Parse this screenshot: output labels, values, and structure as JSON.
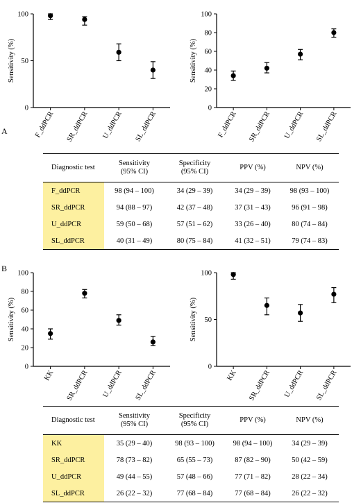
{
  "panels": [
    {
      "letter": "A"
    },
    {
      "letter": "B"
    }
  ],
  "chart_data": [
    {
      "type": "scatter",
      "panel": "A",
      "ylabel": "Sensitivity (%)",
      "ylim": [
        0,
        100
      ],
      "yticks": [
        0,
        50,
        100
      ],
      "categories": [
        "F_ddPCR",
        "SR_ddPCR",
        "U_ddPCR",
        "SL_ddPCR"
      ],
      "values": [
        98,
        94,
        59,
        40
      ],
      "lower": [
        94,
        88,
        50,
        31
      ],
      "upper": [
        100,
        97,
        68,
        49
      ],
      "grid": false
    },
    {
      "type": "scatter",
      "panel": "A",
      "ylabel": "Sensitivity (%)",
      "ylim": [
        0,
        100
      ],
      "yticks": [
        0,
        20,
        40,
        60,
        80,
        100
      ],
      "categories": [
        "F_ddPCR",
        "SR_ddPCR",
        "U_ddPCR",
        "SL_ddPCR"
      ],
      "values": [
        34,
        42,
        57,
        80
      ],
      "lower": [
        29,
        37,
        51,
        75
      ],
      "upper": [
        39,
        48,
        62,
        84
      ],
      "grid": false
    },
    {
      "type": "scatter",
      "panel": "B",
      "ylabel": "Sensitivity (%)",
      "ylim": [
        0,
        100
      ],
      "yticks": [
        0,
        20,
        40,
        60,
        80,
        100
      ],
      "categories": [
        "KK",
        "SR_ddPCR",
        "U_ddPCR",
        "SL_ddPCR"
      ],
      "values": [
        35,
        78,
        49,
        26
      ],
      "lower": [
        29,
        73,
        44,
        22
      ],
      "upper": [
        40,
        82,
        55,
        32
      ],
      "grid": false
    },
    {
      "type": "scatter",
      "panel": "B",
      "ylabel": "Sensitivity (%)",
      "ylim": [
        0,
        100
      ],
      "yticks": [
        0,
        50,
        100
      ],
      "categories": [
        "KK",
        "SR_ddPCR",
        "U_ddPCR",
        "SL_ddPCR"
      ],
      "values": [
        98,
        65,
        57,
        77
      ],
      "lower": [
        93,
        55,
        48,
        68
      ],
      "upper": [
        100,
        73,
        66,
        84
      ],
      "grid": false
    }
  ],
  "tables": [
    {
      "headers": [
        "Diagnostic test",
        "Sensitivity\n(95% CI)",
        "Specificity\n(95% CI)",
        "PPV (%)",
        "NPV (%)"
      ],
      "rows": [
        [
          "F_ddPCR",
          "98 (94 – 100)",
          "34 (29 – 39)",
          "34 (29 – 39)",
          "98 (93 – 100)"
        ],
        [
          "SR_ddPCR",
          "94 (88 – 97)",
          "42 (37 – 48)",
          "37 (31 – 43)",
          "96 (91 – 98)"
        ],
        [
          "U_ddPCR",
          "59 (50 – 68)",
          "57 (51 – 62)",
          "33 (26 – 40)",
          "80 (74 – 84)"
        ],
        [
          "SL_ddPCR",
          "40 (31 – 49)",
          "80 (75 – 84)",
          "41 (32 – 51)",
          "79 (74 – 83)"
        ]
      ]
    },
    {
      "headers": [
        "Diagnostic test",
        "Sensitivity\n(95% CI)",
        "Specificity\n(95% CI)",
        "PPV (%)",
        "NPV (%)"
      ],
      "rows": [
        [
          "KK",
          "35 (29 – 40)",
          "98 (93 – 100)",
          "98 (94 – 100)",
          "34 (29 – 39)"
        ],
        [
          "SR_ddPCR",
          "78 (73 – 82)",
          "65 (55 – 73)",
          "87 (82 – 90)",
          "50 (42 – 59)"
        ],
        [
          "U_ddPCR",
          "49 (44 – 55)",
          "57 (48 – 66)",
          "77 (71 – 82)",
          "28 (22 – 34)"
        ],
        [
          "SL_ddPCR",
          "26 (22 – 32)",
          "77 (68 – 84)",
          "77 (68 – 84)",
          "26 (22 – 32)"
        ]
      ]
    }
  ]
}
